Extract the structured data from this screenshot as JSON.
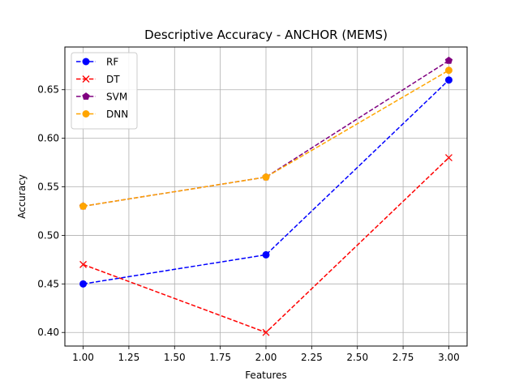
{
  "chart_data": {
    "type": "line",
    "title": "Descriptive Accuracy - ANCHOR (MEMS)",
    "xlabel": "Features",
    "ylabel": "Accuracy",
    "x": [
      1.0,
      2.0,
      3.0
    ],
    "xlim": [
      0.9,
      3.1
    ],
    "ylim": [
      0.386,
      0.694
    ],
    "xticks": [
      "1.00",
      "1.25",
      "1.50",
      "1.75",
      "2.00",
      "2.25",
      "2.50",
      "2.75",
      "3.00"
    ],
    "yticks": [
      "0.40",
      "0.45",
      "0.50",
      "0.55",
      "0.60",
      "0.65"
    ],
    "grid": true,
    "legend_position": "top-left",
    "series": [
      {
        "name": "RF",
        "values": [
          0.45,
          0.48,
          0.66
        ],
        "color": "#0000ff",
        "marker": "circle",
        "linestyle": "dashed"
      },
      {
        "name": "DT",
        "values": [
          0.47,
          0.4,
          0.58
        ],
        "color": "#ff0000",
        "marker": "x",
        "linestyle": "dashed"
      },
      {
        "name": "SVM",
        "values": [
          0.53,
          0.56,
          0.68
        ],
        "color": "#800080",
        "marker": "pentagon",
        "linestyle": "dashed"
      },
      {
        "name": "DNN",
        "values": [
          0.53,
          0.56,
          0.67
        ],
        "color": "#ffa500",
        "marker": "circle",
        "linestyle": "dashed"
      }
    ]
  }
}
